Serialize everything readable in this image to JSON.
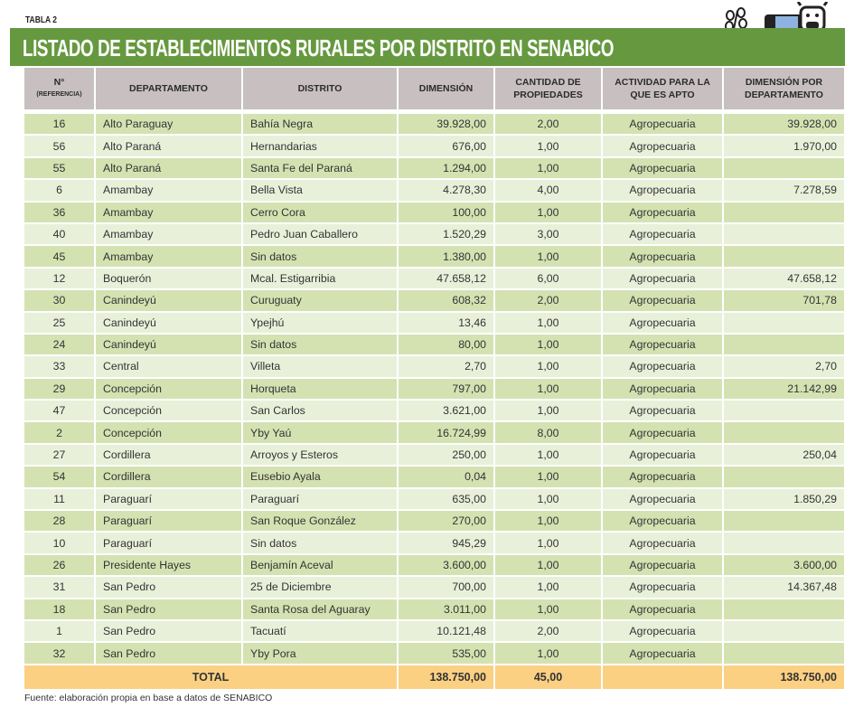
{
  "table_label": "TABLA 2",
  "title": "LISTADO DE ESTABLECIMIENTOS RURALES POR DISTRITO EN SENABICO",
  "headers": {
    "n": "N°",
    "n_sub": "(REFERENCIA)",
    "departamento": "DEPARTAMENTO",
    "distrito": "DISTRITO",
    "dimension": "DIMENSIÓN",
    "cantidad": "CANTIDAD DE PROPIEDADES",
    "actividad": "ACTIVIDAD PARA LA QUE ES APTO",
    "dim_depto": "DIMENSIÓN POR DEPARTAMENTO"
  },
  "rows": [
    [
      "16",
      "Alto Paraguay",
      "Bahía Negra",
      "39.928,00",
      "2,00",
      "Agropecuaria",
      "39.928,00"
    ],
    [
      "56",
      "Alto Paraná",
      "Hernandarias",
      "676,00",
      "1,00",
      "Agropecuaria",
      "1.970,00"
    ],
    [
      "55",
      "Alto Paraná",
      "Santa Fe del Paraná",
      "1.294,00",
      "1,00",
      "Agropecuaria",
      ""
    ],
    [
      "6",
      "Amambay",
      "Bella Vista",
      "4.278,30",
      "4,00",
      "Agropecuaria",
      "7.278,59"
    ],
    [
      "36",
      "Amambay",
      "Cerro Cora",
      "100,00",
      "1,00",
      "Agropecuaria",
      ""
    ],
    [
      "40",
      "Amambay",
      "Pedro Juan Caballero",
      "1.520,29",
      "3,00",
      "Agropecuaria",
      ""
    ],
    [
      "45",
      "Amambay",
      "Sin datos",
      "1.380,00",
      "1,00",
      "Agropecuaria",
      ""
    ],
    [
      "12",
      "Boquerón",
      "Mcal. Estigarribia",
      "47.658,12",
      "6,00",
      "Agropecuaria",
      "47.658,12"
    ],
    [
      "30",
      "Canindeyú",
      "Curuguaty",
      "608,32",
      "2,00",
      "Agropecuaria",
      "701,78"
    ],
    [
      "25",
      "Canindeyú",
      "Ypejhú",
      "13,46",
      "1,00",
      "Agropecuaria",
      ""
    ],
    [
      "24",
      "Canindeyú",
      "Sin datos",
      "80,00",
      "1,00",
      "Agropecuaria",
      ""
    ],
    [
      "33",
      "Central",
      "Villeta",
      "2,70",
      "1,00",
      "Agropecuaria",
      "2,70"
    ],
    [
      "29",
      "Concepción",
      "Horqueta",
      "797,00",
      "1,00",
      "Agropecuaria",
      "21.142,99"
    ],
    [
      "47",
      "Concepción",
      "San Carlos",
      "3.621,00",
      "1,00",
      "Agropecuaria",
      ""
    ],
    [
      "2",
      "Concepción",
      "Yby Yaú",
      "16.724,99",
      "8,00",
      "Agropecuaria",
      ""
    ],
    [
      "27",
      "Cordillera",
      "Arroyos y Esteros",
      "250,00",
      "1,00",
      "Agropecuaria",
      "250,04"
    ],
    [
      "54",
      "Cordillera",
      "Eusebio Ayala",
      "0,04",
      "1,00",
      "Agropecuaria",
      ""
    ],
    [
      "11",
      "Paraguarí",
      "Paraguarí",
      "635,00",
      "1,00",
      "Agropecuaria",
      "1.850,29"
    ],
    [
      "28",
      "Paraguarí",
      "San Roque González",
      "270,00",
      "1,00",
      "Agropecuaria",
      ""
    ],
    [
      "10",
      "Paraguarí",
      "Sin datos",
      "945,29",
      "1,00",
      "Agropecuaria",
      ""
    ],
    [
      "26",
      "Presidente Hayes",
      "Benjamín Aceval",
      "3.600,00",
      "1,00",
      "Agropecuaria",
      "3.600,00"
    ],
    [
      "31",
      "San Pedro",
      "25 de Diciembre",
      "700,00",
      "1,00",
      "Agropecuaria",
      "14.367,48"
    ],
    [
      "18",
      "San Pedro",
      "Santa Rosa del Aguaray",
      "3.011,00",
      "1,00",
      "Agropecuaria",
      ""
    ],
    [
      "1",
      "San Pedro",
      "Tacuatí",
      "10.121,48",
      "2,00",
      "Agropecuaria",
      ""
    ],
    [
      "32",
      "San Pedro",
      "Yby Pora",
      "535,00",
      "1,00",
      "Agropecuaria",
      ""
    ]
  ],
  "total": {
    "label": "TOTAL",
    "dimension": "138.750,00",
    "cantidad": "45,00",
    "dim_depto": "138.750,00"
  },
  "source": "Fuente: elaboración propia en base a datos de SENABICO"
}
